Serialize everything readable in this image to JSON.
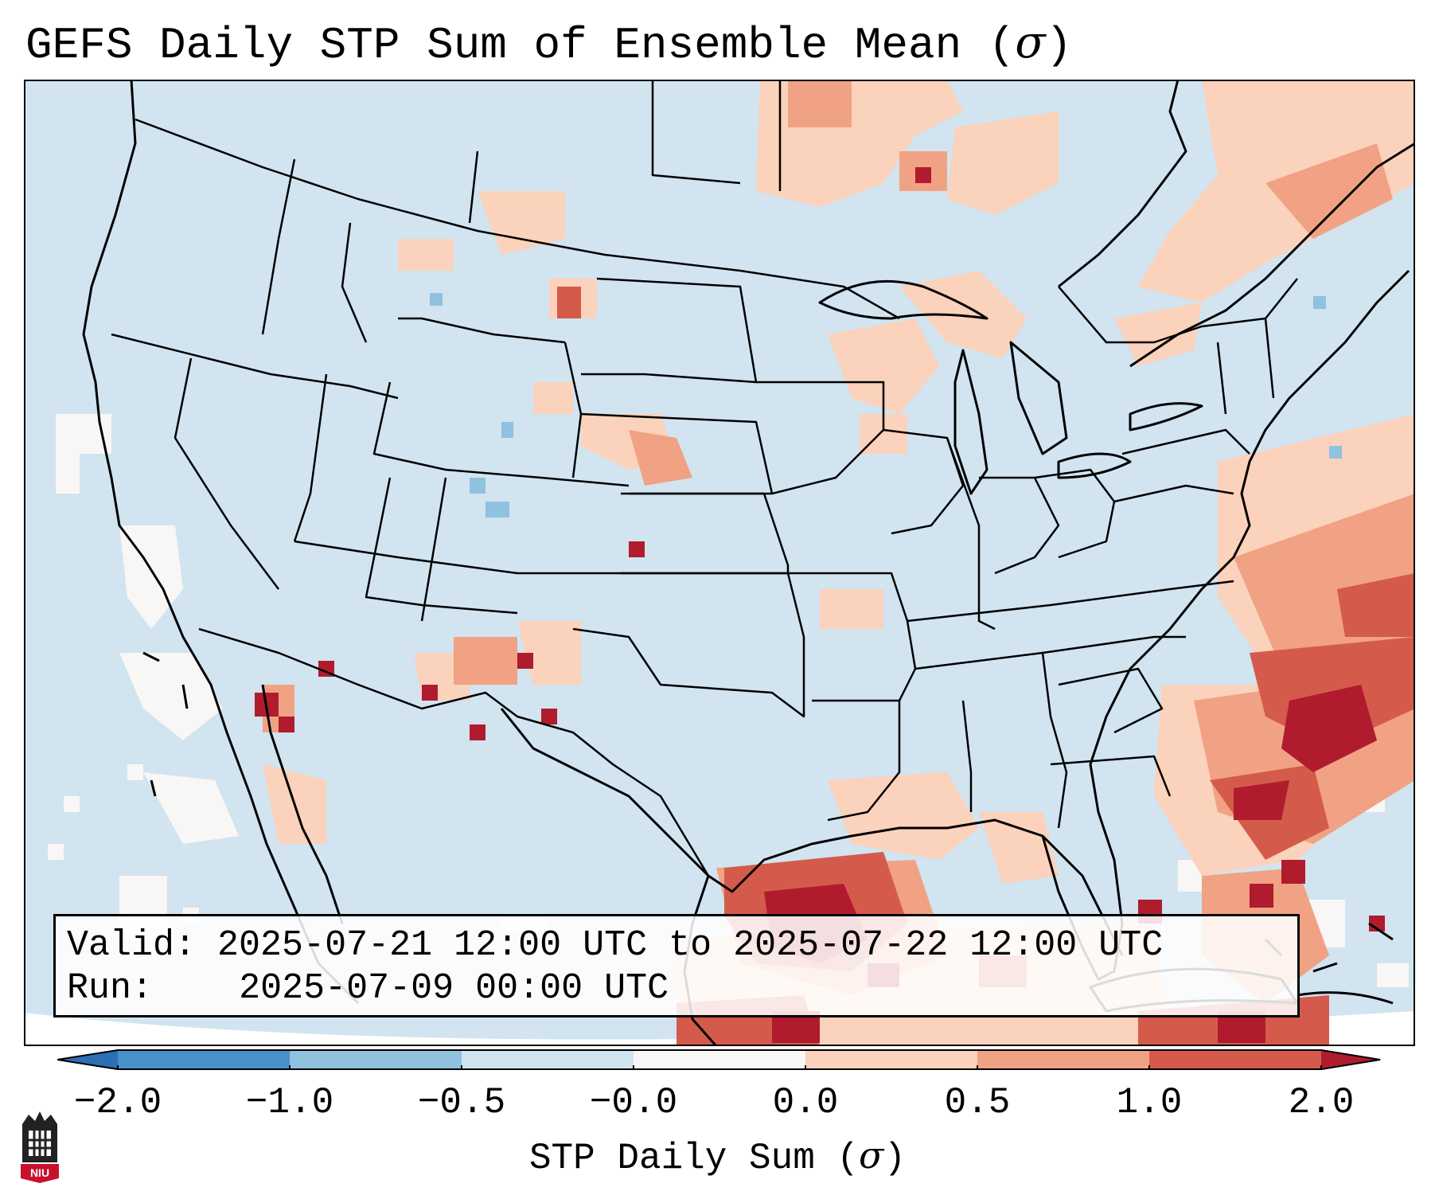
{
  "title": {
    "main": "GEFS Daily STP Sum of Ensemble Mean (",
    "sigma": "σ",
    "close": ")"
  },
  "info": {
    "valid_label": "Valid:",
    "valid_value": "2025-07-21 12:00 UTC to 2025-07-22 12:00 UTC",
    "run_label": "Run:",
    "run_value": "2025-07-09 00:00 UTC"
  },
  "colorbar": {
    "label_prefix": "STP Daily Sum (",
    "label_sigma": "σ",
    "label_suffix": ")",
    "ticks": [
      "−2.0",
      "−1.0",
      "−0.5",
      "−0.0",
      "0.0",
      "0.5",
      "1.0",
      "2.0"
    ],
    "bins": [
      {
        "from": "extend-low",
        "color": "#2c6fb5"
      },
      {
        "from": "-2.0",
        "to": "-1.0",
        "color": "#4791c8"
      },
      {
        "from": "-1.0",
        "to": "-0.5",
        "color": "#90c1de"
      },
      {
        "from": "-0.5",
        "to": "-0.0",
        "color": "#d1e4f0"
      },
      {
        "from": "-0.0",
        "to": "0.0",
        "color": "#f8f7f6"
      },
      {
        "from": "0.0",
        "to": "0.5",
        "color": "#fbd2bb"
      },
      {
        "from": "0.5",
        "to": "1.0",
        "color": "#f1a284"
      },
      {
        "from": "1.0",
        "to": "2.0",
        "color": "#d45b4c"
      },
      {
        "from": "extend-high",
        "color": "#b01b2e"
      }
    ]
  },
  "map": {
    "background_color": "#d1e4f0",
    "regions": [
      {
        "name": "gulf-of-mexico-core",
        "level": "2.0+"
      },
      {
        "name": "atlantic-southeast",
        "level": "1.0-2.0"
      },
      {
        "name": "great-lakes-canada",
        "level": "0.0-0.5"
      },
      {
        "name": "northern-plains",
        "level": "0.5-1.0"
      },
      {
        "name": "southwest-monsoon",
        "level": "1.0-2.0"
      },
      {
        "name": "pacific-coast",
        "level": "-0.0-0.0"
      }
    ]
  },
  "logo": {
    "text": "NIU"
  },
  "colors": {
    "accent": "#b01b2e",
    "ocean": "#d1e4f0",
    "border": "#000000"
  }
}
